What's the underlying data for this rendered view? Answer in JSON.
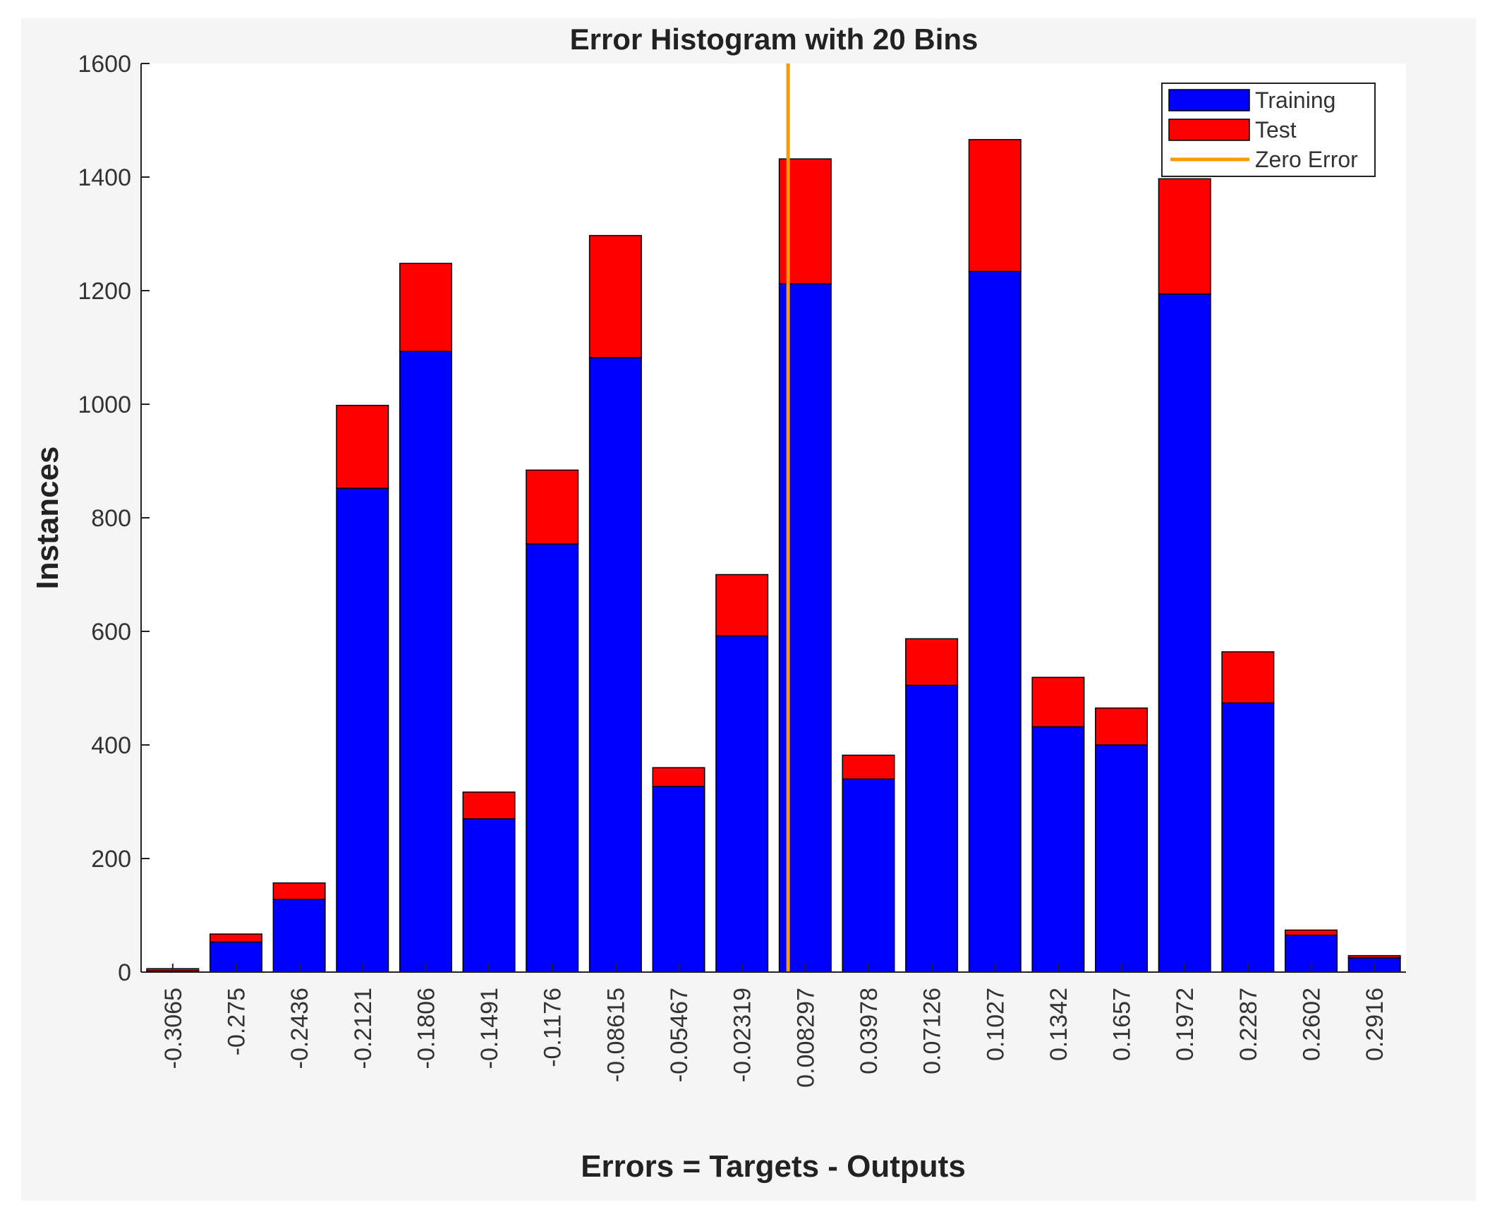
{
  "chart_data": {
    "type": "bar",
    "title": "Error Histogram with 20 Bins",
    "xlabel": "Errors = Targets - Outputs",
    "ylabel": "Instances",
    "categories": [
      "-0.3065",
      "-0.275",
      "-0.2436",
      "-0.2121",
      "-0.1806",
      "-0.1491",
      "-0.1176",
      "-0.08615",
      "-0.05467",
      "-0.02319",
      "0.008297",
      "0.03978",
      "0.07126",
      "0.1027",
      "0.1342",
      "0.1657",
      "0.1972",
      "0.2287",
      "0.2602",
      "0.2916"
    ],
    "series": [
      {
        "name": "Training",
        "color": "#0000ff",
        "values": [
          2,
          53,
          128,
          852,
          1093,
          270,
          754,
          1082,
          327,
          592,
          1212,
          340,
          505,
          1234,
          432,
          400,
          1194,
          474,
          65,
          25
        ]
      },
      {
        "name": "Test",
        "color": "#ff0000",
        "values": [
          4,
          14,
          29,
          146,
          155,
          47,
          130,
          215,
          33,
          108,
          220,
          42,
          82,
          232,
          87,
          65,
          203,
          90,
          9,
          4
        ]
      }
    ],
    "stacked": true,
    "zero_error": {
      "name": "Zero Error",
      "color": "#ff9900",
      "x_category_index": 10
    },
    "yticks": [
      0,
      200,
      400,
      600,
      800,
      1000,
      1200,
      1400,
      1600
    ],
    "ylim": [
      0,
      1600
    ],
    "grid": false,
    "legend_position": "top-right"
  }
}
